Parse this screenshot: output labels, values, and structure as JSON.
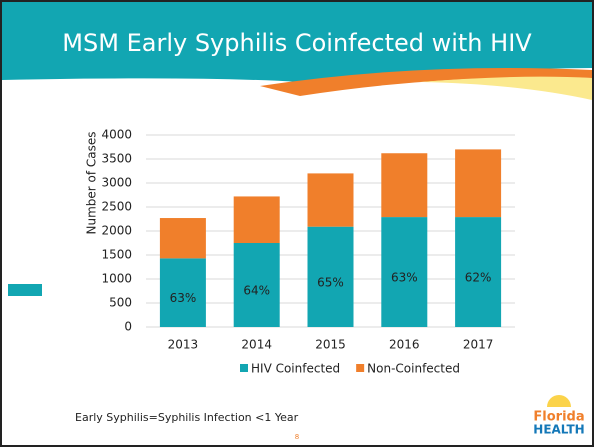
{
  "title": "MSM Early Syphilis Coinfected with HIV",
  "chart_data": {
    "type": "stacked_bar",
    "categories": [
      "2013",
      "2014",
      "2015",
      "2016",
      "2017"
    ],
    "series": [
      {
        "name": "HIV Coinfected",
        "color": "#12a6b2",
        "values": [
          1430,
          1750,
          2090,
          2290,
          2290
        ]
      },
      {
        "name": "Non-Coinfected",
        "color": "#f07f2b",
        "values": [
          840,
          970,
          1110,
          1330,
          1410
        ]
      }
    ],
    "share_labels": [
      "63%",
      "64%",
      "65%",
      "63%",
      "62%"
    ],
    "y_label": "Number of Cases",
    "ylim": [
      0,
      4000
    ],
    "yticks": [
      0,
      500,
      1000,
      1500,
      2000,
      2500,
      3000,
      3500,
      4000
    ],
    "grid": true,
    "legend": "bottom"
  },
  "footnote": "Early Syphilis=Syphilis Infection <1 Year",
  "page_number": "8",
  "logo": {
    "line1": "Florida",
    "line2": "HEALTH"
  }
}
